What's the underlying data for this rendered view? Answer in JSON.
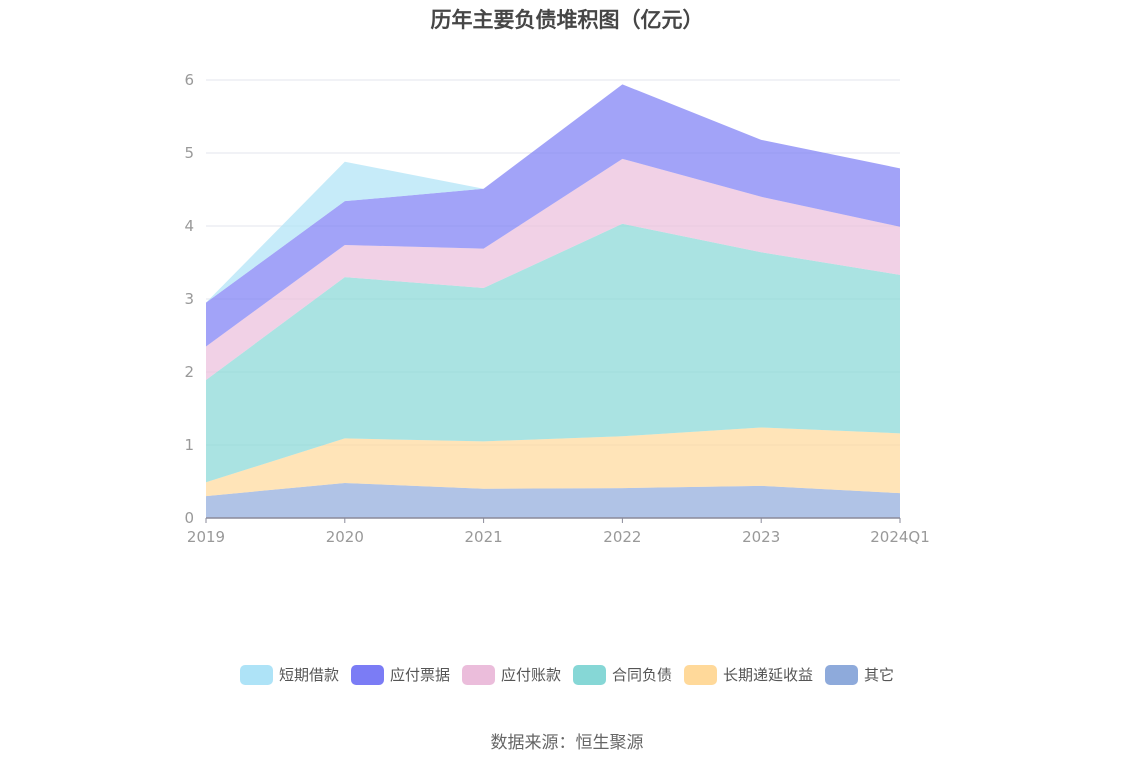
{
  "title": "历年主要负债堆积图（亿元）",
  "source": "数据来源：恒生聚源",
  "chart_data": {
    "type": "area",
    "stacked": true,
    "categories": [
      "2019",
      "2020",
      "2021",
      "2022",
      "2023",
      "2024Q1"
    ],
    "ylim": [
      0,
      6
    ],
    "yticks": [
      0,
      1,
      2,
      3,
      4,
      5,
      6
    ],
    "grid": true,
    "legend_position": "bottom",
    "series": [
      {
        "name": "其它",
        "color": "#8eaadb",
        "values": [
          0.3,
          0.48,
          0.4,
          0.41,
          0.44,
          0.34
        ]
      },
      {
        "name": "长期递延收益",
        "color": "#ffd99a",
        "values": [
          0.19,
          0.61,
          0.65,
          0.71,
          0.8,
          0.82
        ]
      },
      {
        "name": "合同负债",
        "color": "#86d7d6",
        "values": [
          1.4,
          2.21,
          2.1,
          2.91,
          2.4,
          2.17
        ]
      },
      {
        "name": "应付账款",
        "color": "#ebbddb",
        "values": [
          0.46,
          0.44,
          0.54,
          0.89,
          0.76,
          0.66
        ]
      },
      {
        "name": "应付票据",
        "color": "#7b7cf5",
        "values": [
          0.6,
          0.6,
          0.82,
          1.02,
          0.78,
          0.8
        ]
      },
      {
        "name": "短期借款",
        "color": "#aee3f7",
        "values": [
          0.0,
          0.54,
          0.0,
          0.0,
          0.0,
          0.0
        ]
      }
    ],
    "legend_order": [
      "短期借款",
      "应付票据",
      "应付账款",
      "合同负债",
      "长期递延收益",
      "其它"
    ]
  }
}
